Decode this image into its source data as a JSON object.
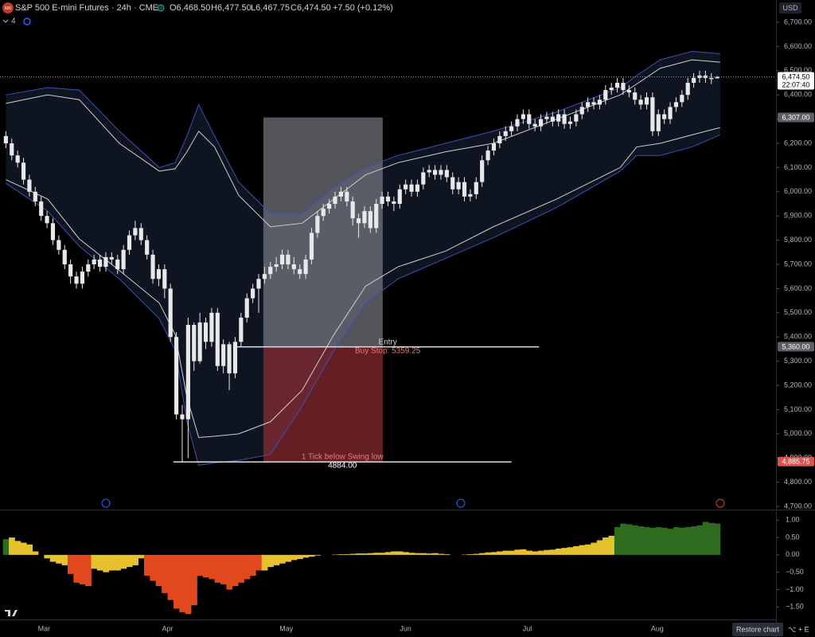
{
  "header": {
    "symbol": "S&P 500 E-mini Futures · 24h · CME",
    "logo": "500",
    "ohlc": [
      "O6,468.50",
      "H6,477.50",
      "L6,467.75",
      "C6,474.50"
    ],
    "change": "+7.50 (+0.12%)",
    "indicator_count": "4",
    "currency": "USD",
    "restore": "Restore chart",
    "shortcut": "⌥ + E"
  },
  "chart_data": [
    {
      "type": "candlestick",
      "candle_color": "#e8e8e8",
      "open": [
        6230,
        6200,
        6150,
        6120,
        6050,
        6000,
        5960,
        5900,
        5870,
        5800,
        5760,
        5700,
        5650,
        5620,
        5670,
        5700,
        5720,
        5690,
        5730,
        5720,
        5680,
        5760,
        5820,
        5850,
        5800,
        5740,
        5640,
        5680,
        5600,
        5400,
        5080,
        5060,
        5450,
        5300,
        5460,
        5380,
        5500,
        5280,
        5370,
        5250,
        5380,
        5480,
        5560,
        5600,
        5640,
        5660,
        5690,
        5700,
        5740,
        5700,
        5680,
        5660,
        5720,
        5830,
        5900,
        5930,
        5950,
        5980,
        6000,
        5960,
        5890,
        5870,
        5920,
        5850,
        5950,
        5980,
        5960,
        5950,
        6010,
        6030,
        6000,
        6030,
        6080,
        6090,
        6070,
        6090,
        6060,
        6010,
        6040,
        5980,
        5990,
        6040,
        6130,
        6170,
        6200,
        6230,
        6250,
        6270,
        6300,
        6320,
        6280,
        6270,
        6300,
        6310,
        6290,
        6320,
        6280,
        6290,
        6320,
        6350,
        6370,
        6360,
        6380,
        6420,
        6430,
        6450,
        6420,
        6410,
        6380,
        6360,
        6390,
        6250,
        6320,
        6300,
        6350,
        6370,
        6400,
        6450,
        6470,
        6480,
        6470,
        6468.5
      ],
      "high": [
        6250,
        6220,
        6170,
        6140,
        6070,
        6020,
        5980,
        5920,
        5890,
        5820,
        5780,
        5720,
        5670,
        5690,
        5720,
        5740,
        5740,
        5750,
        5750,
        5740,
        5780,
        5840,
        5880,
        5870,
        5820,
        5760,
        5700,
        5700,
        5620,
        5420,
        5120,
        5480,
        5460,
        5500,
        5480,
        5520,
        5520,
        5390,
        5380,
        5400,
        5500,
        5580,
        5620,
        5660,
        5690,
        5710,
        5730,
        5760,
        5760,
        5730,
        5700,
        5740,
        5850,
        5920,
        5950,
        5970,
        6000,
        6020,
        6020,
        5980,
        5910,
        5940,
        5940,
        5970,
        6000,
        6000,
        5980,
        6030,
        6050,
        6050,
        6050,
        6100,
        6110,
        6110,
        6110,
        6110,
        6080,
        6060,
        6060,
        6010,
        6060,
        6150,
        6190,
        6220,
        6250,
        6270,
        6290,
        6320,
        6340,
        6340,
        6300,
        6320,
        6330,
        6330,
        6340,
        6340,
        6310,
        6340,
        6370,
        6390,
        6390,
        6400,
        6440,
        6450,
        6470,
        6470,
        6440,
        6430,
        6400,
        6410,
        6410,
        6340,
        6340,
        6370,
        6390,
        6420,
        6470,
        6490,
        6500,
        6500,
        6490,
        6477.5
      ],
      "low": [
        6180,
        6130,
        6100,
        6030,
        5980,
        5940,
        5880,
        5850,
        5780,
        5740,
        5680,
        5620,
        5600,
        5600,
        5650,
        5680,
        5670,
        5670,
        5700,
        5660,
        5660,
        5740,
        5800,
        5780,
        5720,
        5620,
        5610,
        5560,
        5380,
        5060,
        4884.25,
        4900,
        5260,
        5290,
        5350,
        5360,
        5260,
        5250,
        5180,
        5230,
        5360,
        5460,
        5540,
        5500,
        5620,
        5640,
        5670,
        5680,
        5680,
        5660,
        5640,
        5640,
        5700,
        5810,
        5880,
        5910,
        5930,
        5960,
        5940,
        5860,
        5810,
        5850,
        5830,
        5830,
        5930,
        5940,
        5920,
        5930,
        5990,
        5980,
        5980,
        6010,
        6060,
        6050,
        6050,
        6040,
        5990,
        5990,
        5960,
        5960,
        5970,
        6020,
        6110,
        6150,
        6180,
        6210,
        6230,
        6250,
        6280,
        6260,
        6250,
        6250,
        6280,
        6270,
        6270,
        6260,
        6260,
        6270,
        6300,
        6330,
        6340,
        6340,
        6360,
        6400,
        6410,
        6400,
        6390,
        6360,
        6340,
        6340,
        6230,
        6230,
        6280,
        6280,
        6330,
        6350,
        6380,
        6430,
        6450,
        6450,
        6445,
        6467.75
      ],
      "close": [
        6200,
        6150,
        6120,
        6050,
        6000,
        5960,
        5900,
        5870,
        5800,
        5760,
        5700,
        5650,
        5620,
        5670,
        5700,
        5720,
        5690,
        5730,
        5720,
        5680,
        5760,
        5820,
        5850,
        5800,
        5740,
        5640,
        5680,
        5600,
        5400,
        5080,
        5060,
        5450,
        5300,
        5460,
        5380,
        5500,
        5280,
        5370,
        5250,
        5380,
        5480,
        5560,
        5600,
        5640,
        5660,
        5690,
        5700,
        5740,
        5700,
        5680,
        5660,
        5720,
        5830,
        5900,
        5930,
        5950,
        5980,
        6000,
        5960,
        5890,
        5870,
        5920,
        5850,
        5950,
        5980,
        5960,
        5950,
        6010,
        6030,
        6000,
        6030,
        6080,
        6090,
        6070,
        6090,
        6060,
        6010,
        6040,
        5980,
        5990,
        6040,
        6130,
        6170,
        6200,
        6230,
        6250,
        6270,
        6300,
        6320,
        6280,
        6270,
        6300,
        6310,
        6290,
        6320,
        6280,
        6290,
        6320,
        6350,
        6370,
        6360,
        6380,
        6420,
        6430,
        6450,
        6420,
        6410,
        6380,
        6360,
        6390,
        6250,
        6320,
        6300,
        6350,
        6370,
        6400,
        6450,
        6470,
        6480,
        6470,
        6465,
        6474.5
      ],
      "bands": {
        "fill": "#0e1520",
        "x": [
          0,
          7.1,
          12.5,
          19.3,
          26.1,
          28.8,
          30.8,
          32.8,
          35.5,
          39.6,
          45,
          50.4,
          55.8,
          61.2,
          66.7,
          74.8,
          82.9,
          93.7,
          104.5,
          107.3,
          111.3,
          116.7,
          121.5
        ],
        "series": [
          {
            "color": "#3f4fb8",
            "values": [
              6400,
              6430,
              6420,
              6250,
              6100,
              6120,
              6230,
              6360,
              6230,
              6040,
              5910,
              5910,
              6020,
              6100,
              6150,
              6200,
              6250,
              6330,
              6430,
              6480,
              6545,
              6580,
              6570
            ]
          },
          {
            "color": "#cfcfcf",
            "values": [
              6365,
              6400,
              6380,
              6200,
              6085,
              6095,
              6165,
              6250,
              6185,
              5985,
              5855,
              5870,
              5970,
              6070,
              6120,
              6165,
              6200,
              6300,
              6400,
              6445,
              6510,
              6545,
              6535
            ]
          },
          {
            "color": "#cfcfcf",
            "values": [
              6050,
              5970,
              5805,
              5675,
              5540,
              5410,
              5150,
              4985,
              4990,
              5000,
              5050,
              5180,
              5410,
              5610,
              5690,
              5755,
              5855,
              5970,
              6100,
              6185,
              6200,
              6235,
              6265
            ]
          },
          {
            "color": "#3f4fb8",
            "values": [
              6035,
              5920,
              5775,
              5640,
              5475,
              5345,
              5050,
              4870,
              4880,
              4890,
              4915,
              5115,
              5345,
              5540,
              5640,
              5725,
              5810,
              5935,
              6085,
              6150,
              6150,
              6185,
              6235
            ]
          }
        ]
      },
      "position": {
        "x": [
          43.8,
          64.1
        ],
        "target": 6307,
        "entry": 5359.25,
        "stop": 4884,
        "profit_color": "#8b8e98",
        "loss_color": "#a8323a"
      },
      "lines": [
        {
          "price": 5359.25,
          "x": [
            39.2,
            90.7
          ],
          "labels": [
            "Entry",
            "Buy Stop: 5359.25"
          ],
          "label_colors": [
            "#d1d4dc",
            "#e47b7f"
          ]
        },
        {
          "price": 4884,
          "x": [
            28.5,
            86
          ],
          "labels": [
            "1 Tick below Swing low",
            "4884.00"
          ],
          "label_colors": [
            "#e47b7f",
            "#ffffff"
          ]
        }
      ],
      "price_labels": [
        {
          "value": 6474.5,
          "label": "6,474.50",
          "sub": "22:07:40",
          "color": "#ffffff",
          "text_color": "#000000"
        },
        {
          "value": 6307,
          "label": "6,307.00",
          "color": "#5d5f66",
          "text_color": "#ffffff"
        },
        {
          "value": 5360,
          "label": "5,360.00",
          "color": "#5d5f66",
          "text_color": "#ffffff"
        },
        {
          "value": 4885.75,
          "label": "4,885.75",
          "color": "#d9534f",
          "text_color": "#ffffff"
        }
      ],
      "xlim": [
        -1,
        131
      ],
      "xticks": [
        {
          "value": 6.5,
          "label": "Mar"
        },
        {
          "value": 27.5,
          "label": "Apr"
        },
        {
          "value": 47.7,
          "label": "May"
        },
        {
          "value": 68,
          "label": "Jun"
        },
        {
          "value": 88.7,
          "label": "Jul"
        },
        {
          "value": 110.8,
          "label": "Aug"
        }
      ],
      "ylim": [
        4687,
        6792
      ],
      "yticks": [
        {
          "value": 6700,
          "label": "6,700.00"
        },
        {
          "value": 6600,
          "label": "6,600.00"
        },
        {
          "value": 6500,
          "label": "6,500.00"
        },
        {
          "value": 6400,
          "label": "6,400.00"
        },
        {
          "value": 6300,
          "label": "6,300.00"
        },
        {
          "value": 6200,
          "label": "6,200.00"
        },
        {
          "value": 6100,
          "label": "6,100.00"
        },
        {
          "value": 6000,
          "label": "6,000.00"
        },
        {
          "value": 5900,
          "label": "5,900.00"
        },
        {
          "value": 5800,
          "label": "5,800.00"
        },
        {
          "value": 5700,
          "label": "5,700.00"
        },
        {
          "value": 5600,
          "label": "5,600.00"
        },
        {
          "value": 5500,
          "label": "5,500.00"
        },
        {
          "value": 5400,
          "label": "5,400.00"
        },
        {
          "value": 5300,
          "label": "5,300.00"
        },
        {
          "value": 5200,
          "label": "5,200.00"
        },
        {
          "value": 5100,
          "label": "5,100.00"
        },
        {
          "value": 5000,
          "label": "5,000.00"
        },
        {
          "value": 4900,
          "label": "4,900.00"
        },
        {
          "value": 4800,
          "label": "4,800.00"
        },
        {
          "value": 4700,
          "label": "4,700.00"
        }
      ]
    },
    {
      "type": "bar",
      "values": [
        0.45,
        0.5,
        0.4,
        0.35,
        0.3,
        0.1,
        0,
        -0.1,
        -0.2,
        -0.25,
        -0.3,
        -0.55,
        -0.8,
        -0.85,
        -0.9,
        -0.4,
        -0.45,
        -0.5,
        -0.45,
        -0.45,
        -0.4,
        -0.35,
        -0.3,
        -0.1,
        -0.6,
        -0.75,
        -0.9,
        -1.1,
        -1.3,
        -1.55,
        -1.65,
        -1.7,
        -1.45,
        -0.6,
        -0.65,
        -0.7,
        -0.8,
        -0.85,
        -1,
        -0.9,
        -0.8,
        -0.7,
        -0.6,
        -0.45,
        -0.45,
        -0.35,
        -0.3,
        -0.25,
        -0.2,
        -0.15,
        -0.12,
        -0.08,
        -0.05,
        -0.02,
        0,
        0,
        0.01,
        0.02,
        0.02,
        0.03,
        0.04,
        0.04,
        0.05,
        0.06,
        0.06,
        0.08,
        0.1,
        0.1,
        0.08,
        0.06,
        0.05,
        0.05,
        0.04,
        0.05,
        0.03,
        0.02,
        0,
        0,
        0.01,
        0.02,
        0.03,
        0.05,
        0.07,
        0.08,
        0.1,
        0.12,
        0.12,
        0.15,
        0.16,
        0.12,
        0.1,
        0.12,
        0.14,
        0.15,
        0.18,
        0.2,
        0.22,
        0.25,
        0.28,
        0.3,
        0.35,
        0.42,
        0.5,
        0.55,
        0.8,
        0.9,
        0.88,
        0.85,
        0.82,
        0.8,
        0.78,
        0.8,
        0.78,
        0.75,
        0.8,
        0.78,
        0.8,
        0.82,
        0.85,
        0.95,
        0.92,
        0.9
      ],
      "colors": [
        "#2e6b1f",
        "#e6c12e",
        "#e6c12e",
        "#e6c12e",
        "#e6c12e",
        "#e6c12e",
        "#e6c12e",
        "#e6c12e",
        "#e6c12e",
        "#e6c12e",
        "#e6c12e",
        "#e2481d",
        "#e2481d",
        "#e2481d",
        "#e2481d",
        "#e6c12e",
        "#e6c12e",
        "#e6c12e",
        "#e6c12e",
        "#e6c12e",
        "#e6c12e",
        "#e6c12e",
        "#e6c12e",
        "#e6c12e",
        "#e2481d",
        "#e2481d",
        "#e2481d",
        "#e2481d",
        "#e2481d",
        "#e2481d",
        "#e2481d",
        "#e2481d",
        "#e2481d",
        "#e2481d",
        "#e2481d",
        "#e2481d",
        "#e2481d",
        "#e2481d",
        "#e2481d",
        "#e2481d",
        "#e2481d",
        "#e2481d",
        "#e2481d",
        "#e2481d",
        "#e6c12e",
        "#e6c12e",
        "#e6c12e",
        "#e6c12e",
        "#e6c12e",
        "#e6c12e",
        "#e6c12e",
        "#e6c12e",
        "#e6c12e",
        "#e6c12e",
        "#e6c12e",
        "#e6c12e",
        "#e6c12e",
        "#e6c12e",
        "#e6c12e",
        "#e6c12e",
        "#e6c12e",
        "#e6c12e",
        "#e6c12e",
        "#e6c12e",
        "#e6c12e",
        "#e6c12e",
        "#e6c12e",
        "#e6c12e",
        "#e6c12e",
        "#e6c12e",
        "#e6c12e",
        "#e6c12e",
        "#e6c12e",
        "#e6c12e",
        "#e6c12e",
        "#e6c12e",
        "#e6c12e",
        "#e6c12e",
        "#e6c12e",
        "#e6c12e",
        "#e6c12e",
        "#e6c12e",
        "#e6c12e",
        "#e6c12e",
        "#e6c12e",
        "#e6c12e",
        "#e6c12e",
        "#e6c12e",
        "#e6c12e",
        "#e6c12e",
        "#e6c12e",
        "#e6c12e",
        "#e6c12e",
        "#e6c12e",
        "#e6c12e",
        "#e6c12e",
        "#e6c12e",
        "#e6c12e",
        "#e6c12e",
        "#e6c12e",
        "#e6c12e",
        "#e6c12e",
        "#e6c12e",
        "#e6c12e",
        "#2e6b1f",
        "#2e6b1f",
        "#2e6b1f",
        "#2e6b1f",
        "#2e6b1f",
        "#2e6b1f",
        "#2e6b1f",
        "#2e6b1f",
        "#2e6b1f",
        "#2e6b1f",
        "#2e6b1f",
        "#2e6b1f",
        "#2e6b1f",
        "#2e6b1f",
        "#2e6b1f",
        "#2e6b1f",
        "#2e6b1f",
        "#2e6b1f"
      ],
      "xlim": [
        -1,
        131
      ],
      "ylim": [
        -1.86,
        1.28
      ],
      "yticks": [
        {
          "value": 1,
          "label": "1.00"
        },
        {
          "value": 0.5,
          "label": "0.50"
        },
        {
          "value": 0,
          "label": "0.00"
        },
        {
          "value": -0.5,
          "label": "−0.50"
        },
        {
          "value": -1,
          "label": "−1.00"
        },
        {
          "value": -1.5,
          "label": "−1.50"
        }
      ]
    }
  ]
}
